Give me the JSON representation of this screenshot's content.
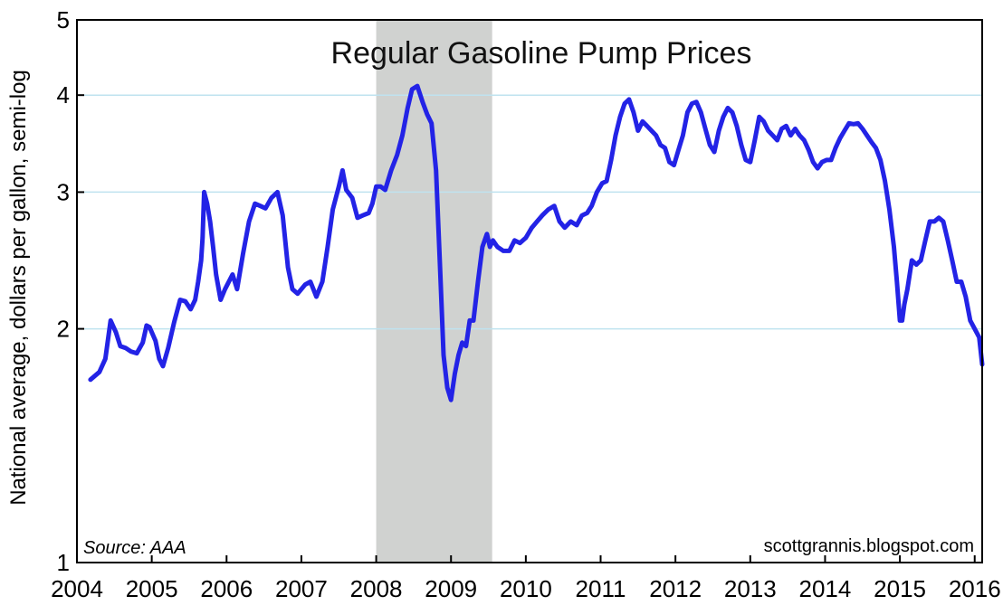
{
  "chart_data": {
    "type": "line",
    "title": "Regular Gasoline Pump Prices",
    "ylabel": "National average, dollars per gallon, semi-log",
    "xlabel": "",
    "yscale": "log",
    "ylim": [
      1,
      5
    ],
    "xlim": [
      2004,
      2016.1
    ],
    "y_ticks": [
      1,
      2,
      3,
      4,
      5
    ],
    "x_ticks": [
      2004,
      2005,
      2006,
      2007,
      2008,
      2009,
      2010,
      2011,
      2012,
      2013,
      2014,
      2015,
      2016
    ],
    "gridlines": [
      2,
      3,
      4
    ],
    "recession_shade": {
      "start": 2008.0,
      "end": 2009.55
    },
    "annotations": {
      "source": "Source: AAA",
      "credit": "scottgrannis.blogspot.com"
    },
    "colors": {
      "line": "#2323e6",
      "shade": "#d0d2d0",
      "grid": "#bfe3ef"
    },
    "series": [
      {
        "name": "Regular Gasoline Pump Price",
        "points": [
          [
            2004.18,
            1.72
          ],
          [
            2004.3,
            1.76
          ],
          [
            2004.38,
            1.83
          ],
          [
            2004.45,
            2.05
          ],
          [
            2004.52,
            1.98
          ],
          [
            2004.58,
            1.9
          ],
          [
            2004.65,
            1.89
          ],
          [
            2004.72,
            1.87
          ],
          [
            2004.8,
            1.86
          ],
          [
            2004.88,
            1.92
          ],
          [
            2004.93,
            2.02
          ],
          [
            2004.97,
            2.01
          ],
          [
            2005.05,
            1.93
          ],
          [
            2005.1,
            1.83
          ],
          [
            2005.15,
            1.79
          ],
          [
            2005.22,
            1.89
          ],
          [
            2005.3,
            2.04
          ],
          [
            2005.38,
            2.18
          ],
          [
            2005.45,
            2.17
          ],
          [
            2005.52,
            2.12
          ],
          [
            2005.58,
            2.18
          ],
          [
            2005.62,
            2.3
          ],
          [
            2005.66,
            2.45
          ],
          [
            2005.68,
            2.62
          ],
          [
            2005.7,
            3.0
          ],
          [
            2005.74,
            2.9
          ],
          [
            2005.78,
            2.75
          ],
          [
            2005.82,
            2.55
          ],
          [
            2005.86,
            2.35
          ],
          [
            2005.92,
            2.18
          ],
          [
            2005.98,
            2.25
          ],
          [
            2006.08,
            2.35
          ],
          [
            2006.14,
            2.25
          ],
          [
            2006.22,
            2.5
          ],
          [
            2006.3,
            2.75
          ],
          [
            2006.38,
            2.9
          ],
          [
            2006.45,
            2.88
          ],
          [
            2006.52,
            2.86
          ],
          [
            2006.6,
            2.95
          ],
          [
            2006.68,
            3.0
          ],
          [
            2006.75,
            2.8
          ],
          [
            2006.82,
            2.4
          ],
          [
            2006.88,
            2.25
          ],
          [
            2006.95,
            2.22
          ],
          [
            2007.05,
            2.28
          ],
          [
            2007.12,
            2.3
          ],
          [
            2007.2,
            2.2
          ],
          [
            2007.28,
            2.3
          ],
          [
            2007.35,
            2.55
          ],
          [
            2007.42,
            2.85
          ],
          [
            2007.5,
            3.05
          ],
          [
            2007.55,
            3.2
          ],
          [
            2007.6,
            3.02
          ],
          [
            2007.68,
            2.95
          ],
          [
            2007.75,
            2.78
          ],
          [
            2007.82,
            2.8
          ],
          [
            2007.9,
            2.82
          ],
          [
            2007.95,
            2.9
          ],
          [
            2008.0,
            3.05
          ],
          [
            2008.06,
            3.05
          ],
          [
            2008.12,
            3.02
          ],
          [
            2008.2,
            3.2
          ],
          [
            2008.28,
            3.35
          ],
          [
            2008.35,
            3.55
          ],
          [
            2008.42,
            3.85
          ],
          [
            2008.48,
            4.07
          ],
          [
            2008.55,
            4.11
          ],
          [
            2008.62,
            3.92
          ],
          [
            2008.68,
            3.78
          ],
          [
            2008.74,
            3.68
          ],
          [
            2008.8,
            3.2
          ],
          [
            2008.85,
            2.45
          ],
          [
            2008.9,
            1.85
          ],
          [
            2008.95,
            1.68
          ],
          [
            2009.0,
            1.62
          ],
          [
            2009.05,
            1.75
          ],
          [
            2009.1,
            1.85
          ],
          [
            2009.15,
            1.92
          ],
          [
            2009.2,
            1.9
          ],
          [
            2009.25,
            2.05
          ],
          [
            2009.3,
            2.05
          ],
          [
            2009.36,
            2.3
          ],
          [
            2009.42,
            2.55
          ],
          [
            2009.48,
            2.65
          ],
          [
            2009.52,
            2.55
          ],
          [
            2009.56,
            2.6
          ],
          [
            2009.62,
            2.55
          ],
          [
            2009.7,
            2.52
          ],
          [
            2009.78,
            2.52
          ],
          [
            2009.85,
            2.6
          ],
          [
            2009.92,
            2.58
          ],
          [
            2010.0,
            2.62
          ],
          [
            2010.08,
            2.7
          ],
          [
            2010.15,
            2.75
          ],
          [
            2010.22,
            2.8
          ],
          [
            2010.3,
            2.85
          ],
          [
            2010.38,
            2.88
          ],
          [
            2010.45,
            2.75
          ],
          [
            2010.52,
            2.7
          ],
          [
            2010.6,
            2.75
          ],
          [
            2010.68,
            2.72
          ],
          [
            2010.75,
            2.8
          ],
          [
            2010.82,
            2.82
          ],
          [
            2010.88,
            2.88
          ],
          [
            2010.95,
            3.0
          ],
          [
            2011.02,
            3.08
          ],
          [
            2011.08,
            3.1
          ],
          [
            2011.14,
            3.3
          ],
          [
            2011.2,
            3.55
          ],
          [
            2011.26,
            3.75
          ],
          [
            2011.32,
            3.9
          ],
          [
            2011.38,
            3.95
          ],
          [
            2011.44,
            3.8
          ],
          [
            2011.5,
            3.6
          ],
          [
            2011.56,
            3.7
          ],
          [
            2011.62,
            3.65
          ],
          [
            2011.68,
            3.6
          ],
          [
            2011.74,
            3.55
          ],
          [
            2011.8,
            3.45
          ],
          [
            2011.86,
            3.42
          ],
          [
            2011.92,
            3.28
          ],
          [
            2011.98,
            3.25
          ],
          [
            2012.04,
            3.4
          ],
          [
            2012.1,
            3.55
          ],
          [
            2012.16,
            3.8
          ],
          [
            2012.22,
            3.9
          ],
          [
            2012.28,
            3.92
          ],
          [
            2012.34,
            3.8
          ],
          [
            2012.4,
            3.62
          ],
          [
            2012.46,
            3.45
          ],
          [
            2012.52,
            3.38
          ],
          [
            2012.58,
            3.6
          ],
          [
            2012.64,
            3.75
          ],
          [
            2012.7,
            3.85
          ],
          [
            2012.76,
            3.8
          ],
          [
            2012.82,
            3.65
          ],
          [
            2012.88,
            3.45
          ],
          [
            2012.94,
            3.3
          ],
          [
            2013.0,
            3.28
          ],
          [
            2013.06,
            3.5
          ],
          [
            2013.12,
            3.75
          ],
          [
            2013.18,
            3.7
          ],
          [
            2013.24,
            3.6
          ],
          [
            2013.3,
            3.55
          ],
          [
            2013.36,
            3.5
          ],
          [
            2013.42,
            3.62
          ],
          [
            2013.48,
            3.65
          ],
          [
            2013.54,
            3.55
          ],
          [
            2013.6,
            3.62
          ],
          [
            2013.66,
            3.55
          ],
          [
            2013.72,
            3.5
          ],
          [
            2013.78,
            3.4
          ],
          [
            2013.84,
            3.28
          ],
          [
            2013.9,
            3.22
          ],
          [
            2013.96,
            3.28
          ],
          [
            2014.02,
            3.3
          ],
          [
            2014.08,
            3.3
          ],
          [
            2014.14,
            3.42
          ],
          [
            2014.2,
            3.52
          ],
          [
            2014.26,
            3.6
          ],
          [
            2014.32,
            3.68
          ],
          [
            2014.38,
            3.67
          ],
          [
            2014.44,
            3.68
          ],
          [
            2014.5,
            3.62
          ],
          [
            2014.56,
            3.55
          ],
          [
            2014.62,
            3.48
          ],
          [
            2014.68,
            3.42
          ],
          [
            2014.74,
            3.3
          ],
          [
            2014.8,
            3.1
          ],
          [
            2014.86,
            2.85
          ],
          [
            2014.92,
            2.55
          ],
          [
            2014.96,
            2.3
          ],
          [
            2015.0,
            2.05
          ],
          [
            2015.03,
            2.05
          ],
          [
            2015.06,
            2.15
          ],
          [
            2015.1,
            2.25
          ],
          [
            2015.16,
            2.45
          ],
          [
            2015.22,
            2.42
          ],
          [
            2015.28,
            2.45
          ],
          [
            2015.34,
            2.6
          ],
          [
            2015.4,
            2.75
          ],
          [
            2015.46,
            2.75
          ],
          [
            2015.52,
            2.78
          ],
          [
            2015.58,
            2.75
          ],
          [
            2015.64,
            2.6
          ],
          [
            2015.7,
            2.45
          ],
          [
            2015.76,
            2.3
          ],
          [
            2015.82,
            2.3
          ],
          [
            2015.88,
            2.2
          ],
          [
            2015.94,
            2.05
          ],
          [
            2016.0,
            2.0
          ],
          [
            2016.06,
            1.95
          ],
          [
            2016.1,
            1.8
          ]
        ]
      }
    ]
  }
}
